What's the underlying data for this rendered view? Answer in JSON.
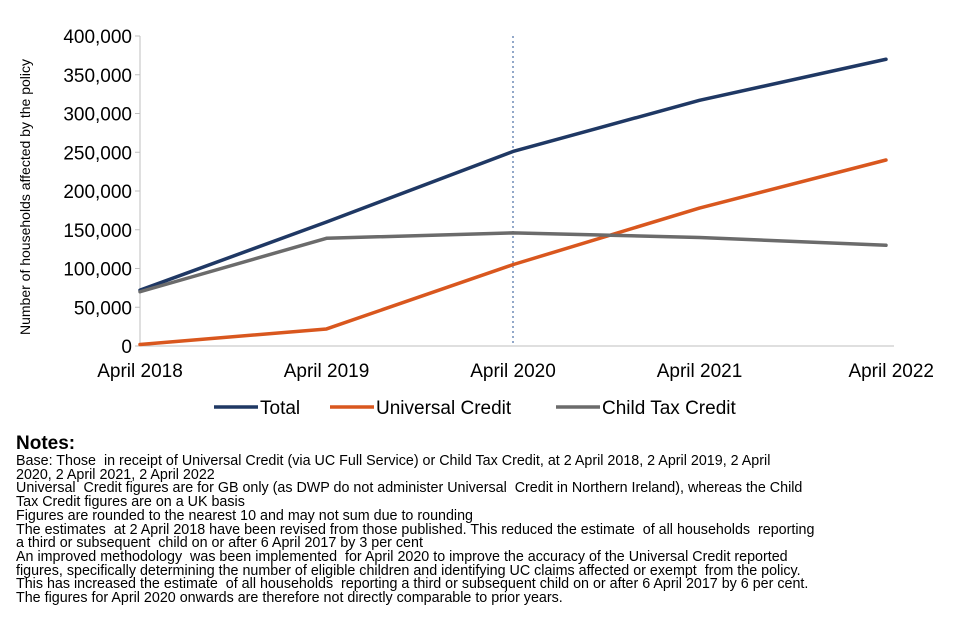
{
  "chart_data": {
    "type": "line",
    "title": "",
    "xlabel": "",
    "ylabel": "Number of households affected by the policy",
    "categories": [
      "April 2018",
      "April 2019",
      "April 2020",
      "April 2021",
      "April 2022"
    ],
    "ylim": [
      0,
      400000
    ],
    "yticks": [
      0,
      50000,
      100000,
      150000,
      200000,
      250000,
      300000,
      350000,
      400000
    ],
    "ytick_labels": [
      "0",
      "50,000",
      "100,000",
      "150,000",
      "200,000",
      "250,000",
      "300,000",
      "350,000",
      "400,000"
    ],
    "grid": false,
    "marker_category": "April 2020",
    "legend_position": "bottom",
    "series": [
      {
        "name": "Total",
        "color": "#1f3864",
        "values": [
          72000,
          160000,
          251000,
          317000,
          370000
        ]
      },
      {
        "name": "Universal Credit",
        "color": "#d9571e",
        "values": [
          2000,
          22000,
          105000,
          178000,
          240000
        ]
      },
      {
        "name": "Child Tax Credit",
        "color": "#6b6b6b",
        "values": [
          70000,
          139000,
          146000,
          140000,
          130000
        ]
      }
    ]
  },
  "notes": {
    "title": "Notes:",
    "lines": [
      "Base: Those  in receipt of Universal Credit (via UC Full Service) or Child Tax Credit, at 2 April 2018, 2 April 2019, 2 April",
      "2020, 2 April 2021, 2 April 2022",
      "Universal  Credit figures are for GB only (as DWP do not administer Universal  Credit in Northern Ireland), whereas the Child",
      "Tax Credit figures are on a UK basis",
      "Figures are rounded to the nearest 10 and may not sum due to rounding",
      "The estimates  at 2 April 2018 have been revised from those published. This reduced the estimate  of all households  reporting",
      "a third or subsequent  child on or after 6 April 2017 by 3 per cent",
      "An improved methodology  was been implemented  for April 2020 to improve the accuracy of the Universal Credit reported",
      "figures, specifically determining the number of eligible children and identifying UC claims affected or exempt  from the policy.",
      "This has increased the estimate  of all households  reporting a third or subsequent child on or after 6 April 2017 by 6 per cent.",
      "The figures for April 2020 onwards are therefore not directly comparable to prior years."
    ]
  }
}
